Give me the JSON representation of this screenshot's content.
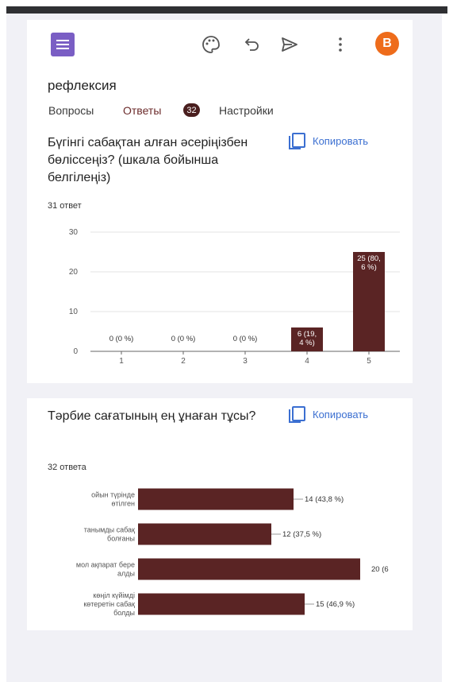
{
  "form": {
    "title": "рефлексия",
    "tabs": [
      {
        "label": "Вопросы"
      },
      {
        "label": "Ответы"
      },
      {
        "label": "Настройки"
      }
    ],
    "responses_badge": "32",
    "avatar_letter": "B"
  },
  "header_icons": [
    "palette-icon",
    "undo-icon",
    "send-icon",
    "more-vert-icon"
  ],
  "colors": {
    "brand": "#7a5ec4",
    "avatar": "#ee6c1b",
    "bar": "#5a2424",
    "link": "#3b6fd1"
  },
  "questions": [
    {
      "title": "Бүгінгі сабақтан алған әсеріңізбен бөліссеңіз? (шкала бойынша белгілеңіз)",
      "count": "31 ответ",
      "copy_label": "Копировать"
    },
    {
      "title": "Тәрбие сағатының ең ұнаған тұсы?",
      "count": "32 ответа",
      "copy_label": "Копировать"
    }
  ],
  "chart_data": [
    {
      "type": "bar",
      "categories": [
        "1",
        "2",
        "3",
        "4",
        "5"
      ],
      "values": [
        0,
        0,
        0,
        6,
        25
      ],
      "data_labels": [
        "0 (0 %)",
        "0 (0 %)",
        "0 (0 %)",
        "6 (19, 4 %)",
        "25 (80, 6 %)"
      ],
      "ylim": [
        0,
        30
      ],
      "yticks": [
        0,
        10,
        20,
        30
      ],
      "grid": true
    },
    {
      "type": "bar",
      "orientation": "horizontal",
      "categories": [
        "ойын түрінде өтілген",
        "танымды сабақ болғаны",
        "мол ақпарат бере алды",
        "көңіл күйімді көтеретін сабақ болды"
      ],
      "values": [
        14,
        12,
        20,
        15
      ],
      "data_labels": [
        "14 (43,8 %)",
        "12 (37,5 %)",
        "20 (6",
        "15 (46,9 %)"
      ],
      "xlim": [
        0,
        20
      ]
    }
  ]
}
